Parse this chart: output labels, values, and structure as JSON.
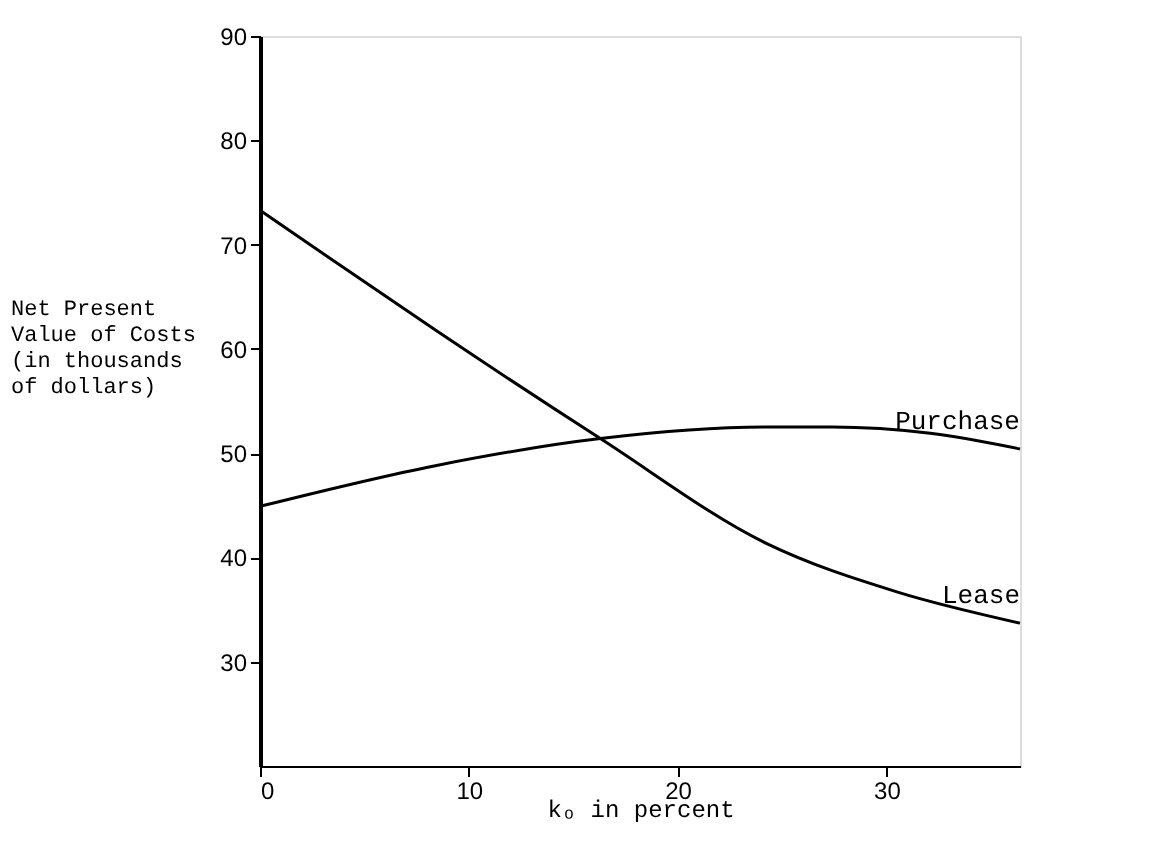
{
  "chart_data": {
    "type": "line",
    "xlabel": "kₒ in percent",
    "ylabel": "Net Present\nValue of Costs\n(in thousands\nof dollars)",
    "xlim": [
      0,
      36.4
    ],
    "xticks": [
      0,
      10,
      20,
      30
    ],
    "ylim": [
      20,
      90
    ],
    "yticks": [
      30,
      40,
      50,
      60,
      70,
      80,
      90
    ],
    "grid": false,
    "legend": false,
    "marker": "none",
    "line_style": "solid",
    "series": [
      {
        "name": "Purchase",
        "color": "#000000",
        "x": [
          0,
          8.4,
          16.3,
          24.3,
          27.4,
          32.1,
          36.4
        ],
        "values": [
          44.9,
          48.8,
          51.4,
          52.5,
          52.5,
          51.9,
          50.4
        ]
      },
      {
        "name": "Lease",
        "color": "#000000",
        "x": [
          0,
          3.7,
          8.4,
          16.3,
          24.3,
          30.5,
          36.4
        ],
        "values": [
          73.3,
          68.2,
          61.8,
          51.4,
          41.3,
          36.7,
          33.7
        ]
      }
    ]
  }
}
